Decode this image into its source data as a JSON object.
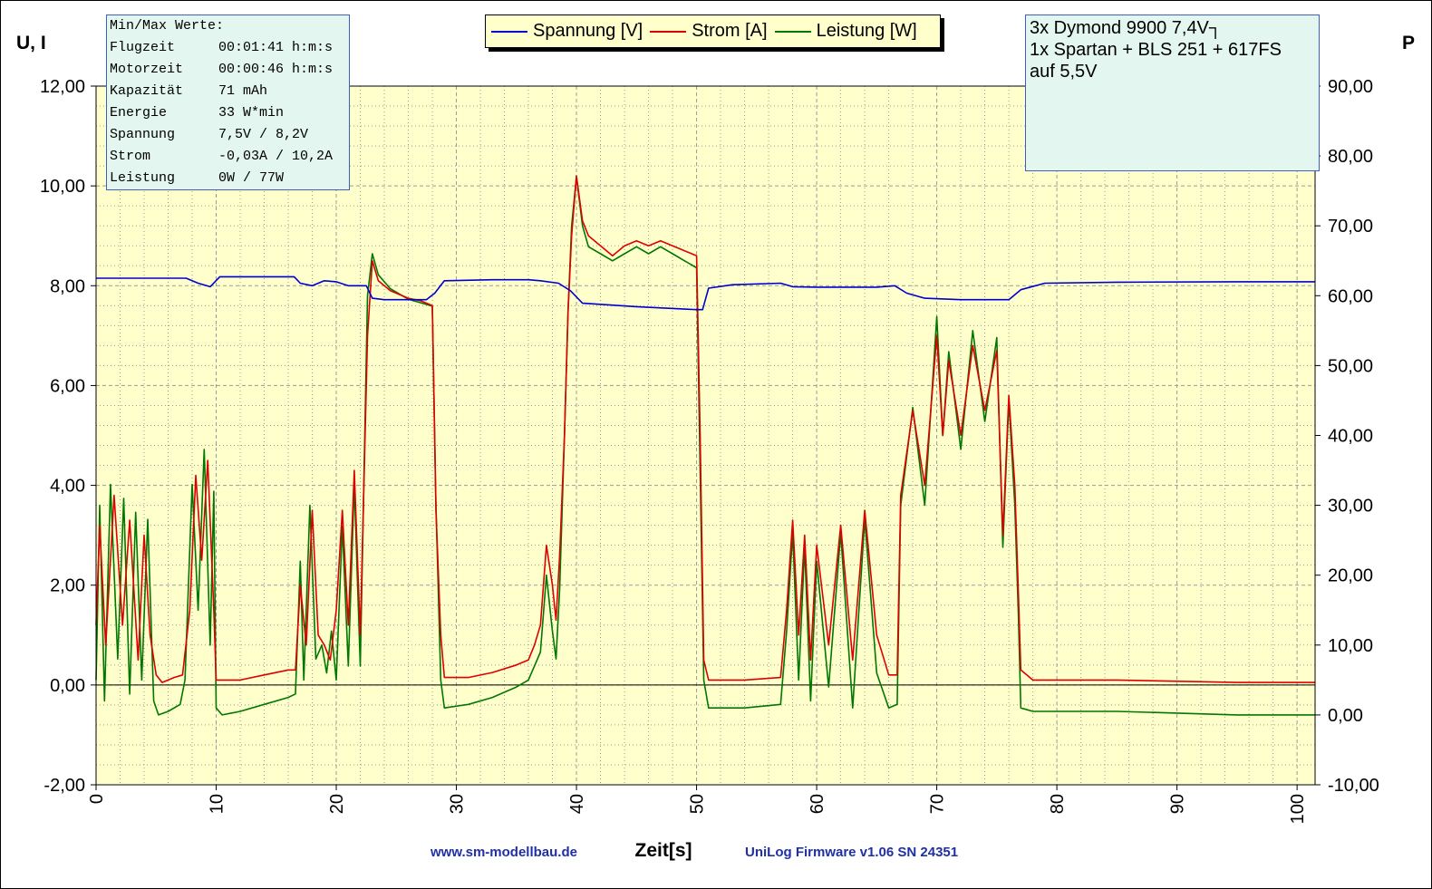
{
  "chart_data": {
    "type": "line",
    "xlabel": "Zeit[s]",
    "ylabel_left": "U, I",
    "ylabel_right": "P",
    "xlim": [
      0,
      101.5
    ],
    "ylim_left": [
      -2,
      12
    ],
    "ylim_right": [
      -10,
      90
    ],
    "x_ticks": [
      "0",
      "10",
      "20",
      "30",
      "40",
      "50",
      "60",
      "70",
      "80",
      "90",
      "100"
    ],
    "y_ticks_left": [
      "12,00",
      "10,00",
      "8,00",
      "6,00",
      "4,00",
      "2,00",
      "0,00",
      "-2,00"
    ],
    "y_ticks_right": [
      "90,00",
      "80,00",
      "70,00",
      "60,00",
      "50,00",
      "40,00",
      "30,00",
      "20,00",
      "10,00",
      "0,00",
      "-10,00"
    ],
    "grid": true,
    "legend_position": "top-center",
    "colors": {
      "plot_bg": "#ffffcc",
      "grid": "#9a9a9a",
      "spannung": "#0000cc",
      "strom": "#dd0000",
      "leistung": "#007700"
    },
    "series": [
      {
        "name": "Spannung [V]",
        "axis": "left",
        "points": [
          [
            0,
            8.15
          ],
          [
            3,
            8.15
          ],
          [
            5.5,
            8.15
          ],
          [
            7.5,
            8.15
          ],
          [
            8.5,
            8.05
          ],
          [
            9.5,
            7.98
          ],
          [
            10.3,
            8.18
          ],
          [
            16.5,
            8.18
          ],
          [
            17,
            8.05
          ],
          [
            18,
            8.0
          ],
          [
            19,
            8.1
          ],
          [
            20,
            8.08
          ],
          [
            21,
            8.0
          ],
          [
            22.5,
            8.0
          ],
          [
            23,
            7.75
          ],
          [
            24,
            7.72
          ],
          [
            27.5,
            7.72
          ],
          [
            28.2,
            7.85
          ],
          [
            29,
            8.1
          ],
          [
            33,
            8.12
          ],
          [
            36,
            8.12
          ],
          [
            37,
            8.1
          ],
          [
            38.5,
            8.05
          ],
          [
            39.5,
            7.9
          ],
          [
            40.5,
            7.65
          ],
          [
            45,
            7.58
          ],
          [
            50,
            7.52
          ],
          [
            50.5,
            7.52
          ],
          [
            51,
            7.95
          ],
          [
            53,
            8.02
          ],
          [
            57,
            8.05
          ],
          [
            58,
            7.98
          ],
          [
            60,
            7.97
          ],
          [
            65,
            7.97
          ],
          [
            66.5,
            8.0
          ],
          [
            67.5,
            7.85
          ],
          [
            69,
            7.75
          ],
          [
            72,
            7.72
          ],
          [
            76,
            7.72
          ],
          [
            77,
            7.92
          ],
          [
            79,
            8.05
          ],
          [
            85,
            8.07
          ],
          [
            95,
            8.08
          ],
          [
            101.5,
            8.08
          ]
        ]
      },
      {
        "name": "Strom [A]",
        "axis": "left",
        "points": [
          [
            0,
            1.2
          ],
          [
            0.3,
            3.2
          ],
          [
            0.8,
            0.8
          ],
          [
            1.5,
            3.8
          ],
          [
            2.2,
            1.2
          ],
          [
            2.8,
            3.3
          ],
          [
            3.5,
            0.5
          ],
          [
            4,
            3.0
          ],
          [
            4.5,
            1.0
          ],
          [
            5,
            0.2
          ],
          [
            5.5,
            0.05
          ],
          [
            6.5,
            0.15
          ],
          [
            7.2,
            0.2
          ],
          [
            7.8,
            1.5
          ],
          [
            8.3,
            4.2
          ],
          [
            8.8,
            2.5
          ],
          [
            9.3,
            4.5
          ],
          [
            9.8,
            1.5
          ],
          [
            10,
            0.1
          ],
          [
            12,
            0.1
          ],
          [
            14,
            0.2
          ],
          [
            16,
            0.3
          ],
          [
            16.6,
            0.3
          ],
          [
            17,
            2.0
          ],
          [
            17.5,
            0.8
          ],
          [
            18,
            3.5
          ],
          [
            18.5,
            1.0
          ],
          [
            19,
            0.8
          ],
          [
            19.5,
            0.5
          ],
          [
            20,
            1.5
          ],
          [
            20.5,
            3.5
          ],
          [
            21,
            1.2
          ],
          [
            21.5,
            4.3
          ],
          [
            22,
            1.0
          ],
          [
            22.6,
            7.0
          ],
          [
            23,
            8.5
          ],
          [
            23.5,
            8.1
          ],
          [
            24.5,
            7.9
          ],
          [
            26,
            7.75
          ],
          [
            27,
            7.7
          ],
          [
            28,
            7.6
          ],
          [
            28.3,
            3.5
          ],
          [
            28.7,
            1.0
          ],
          [
            29,
            0.15
          ],
          [
            31,
            0.15
          ],
          [
            33,
            0.25
          ],
          [
            35,
            0.4
          ],
          [
            36,
            0.5
          ],
          [
            36.5,
            0.8
          ],
          [
            37,
            1.2
          ],
          [
            37.5,
            2.8
          ],
          [
            38,
            2.0
          ],
          [
            38.3,
            1.3
          ],
          [
            38.6,
            2.6
          ],
          [
            39,
            5.0
          ],
          [
            39.3,
            7.5
          ],
          [
            39.6,
            9.0
          ],
          [
            40,
            10.2
          ],
          [
            40.5,
            9.3
          ],
          [
            41,
            9.0
          ],
          [
            42,
            8.8
          ],
          [
            43,
            8.6
          ],
          [
            44,
            8.8
          ],
          [
            45,
            8.9
          ],
          [
            46,
            8.8
          ],
          [
            47,
            8.9
          ],
          [
            48,
            8.8
          ],
          [
            49,
            8.7
          ],
          [
            50,
            8.6
          ],
          [
            50.3,
            5.0
          ],
          [
            50.6,
            0.5
          ],
          [
            51,
            0.1
          ],
          [
            54,
            0.1
          ],
          [
            57,
            0.15
          ],
          [
            57.5,
            1.5
          ],
          [
            58,
            3.3
          ],
          [
            58.5,
            1.0
          ],
          [
            59,
            3.0
          ],
          [
            59.5,
            0.5
          ],
          [
            60,
            2.8
          ],
          [
            61,
            0.8
          ],
          [
            62,
            3.2
          ],
          [
            63,
            0.5
          ],
          [
            64,
            3.5
          ],
          [
            65,
            1.0
          ],
          [
            66,
            0.2
          ],
          [
            66.7,
            0.2
          ],
          [
            67,
            3.8
          ],
          [
            68,
            5.5
          ],
          [
            69,
            4.0
          ],
          [
            70,
            7.0
          ],
          [
            70.5,
            5.0
          ],
          [
            71,
            6.5
          ],
          [
            72,
            5.0
          ],
          [
            73,
            6.8
          ],
          [
            74,
            5.5
          ],
          [
            75,
            6.7
          ],
          [
            75.5,
            3.0
          ],
          [
            76,
            5.8
          ],
          [
            76.5,
            4.0
          ],
          [
            76.8,
            1.8
          ],
          [
            77,
            0.3
          ],
          [
            78,
            0.1
          ],
          [
            85,
            0.1
          ],
          [
            95,
            0.05
          ],
          [
            101.5,
            0.05
          ]
        ]
      },
      {
        "name": "Leistung [W]",
        "axis": "right",
        "points": [
          [
            0,
            5.0
          ],
          [
            0.3,
            30.0
          ],
          [
            0.7,
            2.0
          ],
          [
            1.2,
            33.0
          ],
          [
            1.8,
            8.0
          ],
          [
            2.3,
            31.0
          ],
          [
            2.8,
            3.0
          ],
          [
            3.3,
            29.0
          ],
          [
            3.8,
            5.0
          ],
          [
            4.3,
            28.0
          ],
          [
            4.8,
            2.0
          ],
          [
            5.2,
            0.0
          ],
          [
            6,
            0.5
          ],
          [
            7,
            1.5
          ],
          [
            7.4,
            5.0
          ],
          [
            8,
            33.0
          ],
          [
            8.5,
            15.0
          ],
          [
            9,
            38.0
          ],
          [
            9.5,
            10.0
          ],
          [
            9.8,
            32.0
          ],
          [
            10,
            1.0
          ],
          [
            10.5,
            0.0
          ],
          [
            12,
            0.5
          ],
          [
            14,
            1.5
          ],
          [
            16,
            2.5
          ],
          [
            16.6,
            3.0
          ],
          [
            17,
            22.0
          ],
          [
            17.3,
            5.0
          ],
          [
            17.8,
            30.0
          ],
          [
            18.3,
            8.0
          ],
          [
            18.8,
            10.0
          ],
          [
            19.2,
            6.0
          ],
          [
            19.6,
            12.0
          ],
          [
            20,
            5.0
          ],
          [
            20.5,
            27.0
          ],
          [
            21,
            7.0
          ],
          [
            21.5,
            33.0
          ],
          [
            22,
            7.0
          ],
          [
            22.6,
            60.0
          ],
          [
            23,
            66.0
          ],
          [
            23.5,
            63.0
          ],
          [
            24.5,
            61.0
          ],
          [
            26,
            59.5
          ],
          [
            27,
            59.0
          ],
          [
            28,
            58.5
          ],
          [
            28.3,
            30.0
          ],
          [
            28.7,
            5.0
          ],
          [
            29,
            1.0
          ],
          [
            31,
            1.5
          ],
          [
            33,
            2.5
          ],
          [
            35,
            4.0
          ],
          [
            36,
            5.0
          ],
          [
            36.5,
            7.0
          ],
          [
            37,
            9.0
          ],
          [
            37.5,
            20.0
          ],
          [
            38,
            12.0
          ],
          [
            38.3,
            8.0
          ],
          [
            38.6,
            18.0
          ],
          [
            39,
            40.0
          ],
          [
            39.3,
            58.0
          ],
          [
            39.6,
            70.0
          ],
          [
            40,
            77.0
          ],
          [
            40.5,
            70.0
          ],
          [
            41,
            67.0
          ],
          [
            42,
            66.0
          ],
          [
            43,
            65.0
          ],
          [
            44,
            66.0
          ],
          [
            45,
            67.0
          ],
          [
            46,
            66.0
          ],
          [
            47,
            67.0
          ],
          [
            48,
            66.0
          ],
          [
            49,
            65.0
          ],
          [
            50,
            64.0
          ],
          [
            50.3,
            35.0
          ],
          [
            50.6,
            5.0
          ],
          [
            51,
            1.0
          ],
          [
            54,
            1.0
          ],
          [
            57,
            1.5
          ],
          [
            57.5,
            12.0
          ],
          [
            58,
            26.0
          ],
          [
            58.5,
            5.0
          ],
          [
            59,
            24.0
          ],
          [
            59.5,
            2.0
          ],
          [
            60,
            22.0
          ],
          [
            61,
            4.0
          ],
          [
            62,
            26.0
          ],
          [
            63,
            1.0
          ],
          [
            64,
            28.0
          ],
          [
            65,
            6.0
          ],
          [
            66,
            1.0
          ],
          [
            66.7,
            1.5
          ],
          [
            67,
            30.0
          ],
          [
            68,
            44.0
          ],
          [
            69,
            30.0
          ],
          [
            70,
            57.0
          ],
          [
            70.5,
            40.0
          ],
          [
            71,
            52.0
          ],
          [
            72,
            38.0
          ],
          [
            73,
            55.0
          ],
          [
            74,
            42.0
          ],
          [
            75,
            54.0
          ],
          [
            75.5,
            24.0
          ],
          [
            76,
            45.0
          ],
          [
            76.5,
            30.0
          ],
          [
            76.8,
            14.0
          ],
          [
            77,
            1.0
          ],
          [
            78,
            0.5
          ],
          [
            85,
            0.5
          ],
          [
            95,
            0.0
          ],
          [
            101.5,
            0.0
          ]
        ]
      }
    ]
  },
  "minmax": {
    "title": "Min/Max Werte:",
    "rows": [
      {
        "key": "Flugzeit",
        "value": "00:01:41 h:m:s"
      },
      {
        "key": "Motorzeit",
        "value": "00:00:46 h:m:s"
      },
      {
        "key": "Kapazität",
        "value": "71 mAh"
      },
      {
        "key": "Energie",
        "value": "33 W*min"
      },
      {
        "key": "Spannung",
        "value": "7,5V / 8,2V"
      },
      {
        "key": "Strom",
        "value": "-0,03A / 10,2A"
      },
      {
        "key": "Leistung",
        "value": "0W / 77W"
      }
    ]
  },
  "legend": {
    "items": [
      {
        "label": "Spannung [V]",
        "color": "#0000cc"
      },
      {
        "label": "Strom [A]",
        "color": "#dd0000"
      },
      {
        "label": "Leistung [W]",
        "color": "#007700"
      }
    ]
  },
  "note": {
    "line1": "3x Dymond 9900 7,4V┐",
    "line2": "1x Spartan + BLS 251 + 617FS",
    "line3": "auf 5,5V"
  },
  "footer": {
    "website": "www.sm-modellbau.de",
    "firmware": "UniLog Firmware v1.06 SN 24351"
  }
}
